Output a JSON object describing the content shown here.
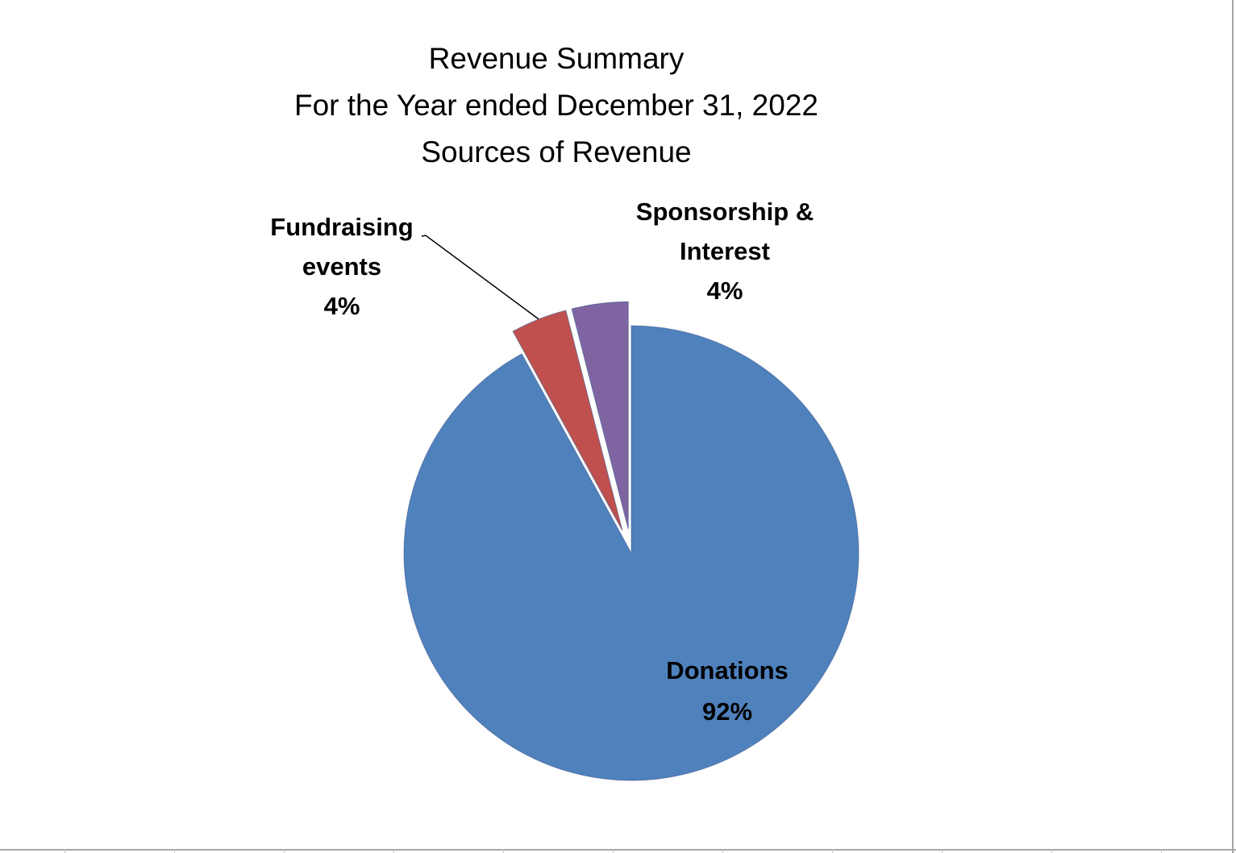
{
  "chart_data": {
    "type": "pie",
    "title": [
      "Revenue Summary",
      "For the Year ended December 31, 2022",
      "Sources of Revenue"
    ],
    "slices": [
      {
        "label_lines": [
          "Donations",
          "92%"
        ],
        "percent": 92,
        "color": "#4f81bd",
        "exploded": true
      },
      {
        "label_lines": [
          "Fundraising",
          "events",
          "4%"
        ],
        "percent": 4,
        "color": "#c0504d",
        "exploded": true
      },
      {
        "label_lines": [
          "Sponsorship &",
          "Interest",
          "4%"
        ],
        "percent": 4,
        "color": "#8064a2",
        "exploded": true
      }
    ],
    "legend": "none"
  }
}
